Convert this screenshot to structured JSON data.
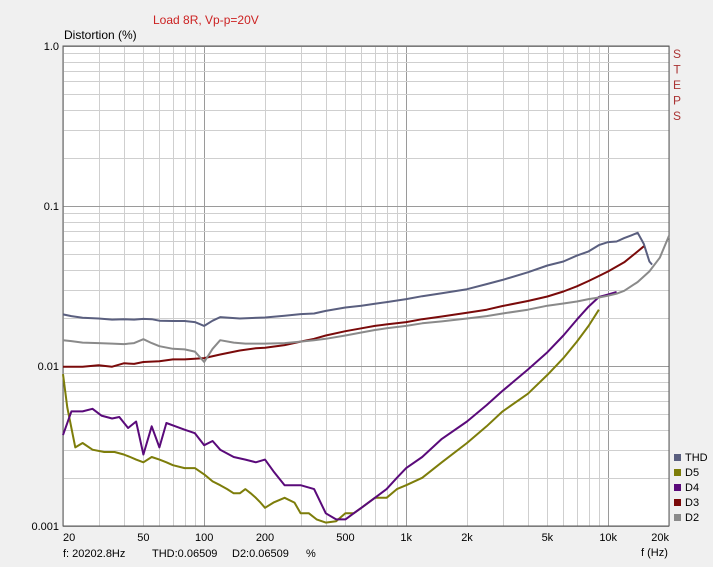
{
  "chart_data": {
    "type": "line",
    "title": "Load 8R, Vp-p=20V",
    "ylabel": "Distortion (%)",
    "xlabel": "f (Hz)",
    "xscale": "log",
    "yscale": "log",
    "xlim": [
      20,
      20000
    ],
    "ylim": [
      0.001,
      1.0
    ],
    "grid": true,
    "legend_position": "bottom-right",
    "side_label": "STEPS",
    "x_ticks": [
      "20",
      "50",
      "100",
      "200",
      "500",
      "1k",
      "2k",
      "5k",
      "10k",
      "20k"
    ],
    "x_tick_values": [
      20,
      50,
      100,
      200,
      500,
      1000,
      2000,
      5000,
      10000,
      20000
    ],
    "y_ticks": [
      "1.0",
      "0.1",
      "0.01",
      "0.001"
    ],
    "y_tick_values": [
      1.0,
      0.1,
      0.01,
      0.001
    ],
    "status": {
      "frequency": "f: 20202.8Hz",
      "thd": "THD:0.06509",
      "d2": "D2:0.06509",
      "unit": "%"
    },
    "series": [
      {
        "name": "THD",
        "color": "#5a5f7f",
        "points": [
          [
            20,
            0.021
          ],
          [
            22,
            0.0205
          ],
          [
            25,
            0.02
          ],
          [
            30,
            0.0198
          ],
          [
            35,
            0.0195
          ],
          [
            40,
            0.0196
          ],
          [
            45,
            0.0195
          ],
          [
            50,
            0.0197
          ],
          [
            55,
            0.0196
          ],
          [
            60,
            0.0192
          ],
          [
            70,
            0.0191
          ],
          [
            80,
            0.0191
          ],
          [
            90,
            0.0188
          ],
          [
            100,
            0.0178
          ],
          [
            110,
            0.0192
          ],
          [
            120,
            0.0202
          ],
          [
            150,
            0.0198
          ],
          [
            200,
            0.0201
          ],
          [
            250,
            0.0206
          ],
          [
            300,
            0.0211
          ],
          [
            350,
            0.0213
          ],
          [
            400,
            0.0221
          ],
          [
            500,
            0.0232
          ],
          [
            600,
            0.0238
          ],
          [
            700,
            0.0245
          ],
          [
            800,
            0.0251
          ],
          [
            1000,
            0.0262
          ],
          [
            1200,
            0.0273
          ],
          [
            1500,
            0.0285
          ],
          [
            2000,
            0.0302
          ],
          [
            2500,
            0.0325
          ],
          [
            3000,
            0.0345
          ],
          [
            4000,
            0.0385
          ],
          [
            5000,
            0.0425
          ],
          [
            6000,
            0.045
          ],
          [
            7000,
            0.049
          ],
          [
            8000,
            0.052
          ],
          [
            9000,
            0.057
          ],
          [
            10000,
            0.0595
          ],
          [
            11000,
            0.06
          ],
          [
            12000,
            0.063
          ],
          [
            13000,
            0.0655
          ],
          [
            14000,
            0.068
          ],
          [
            15000,
            0.058
          ],
          [
            16000,
            0.045
          ],
          [
            16500,
            0.043
          ]
        ]
      },
      {
        "name": "D5",
        "color": "#7d7d0a",
        "points": [
          [
            20,
            0.0089
          ],
          [
            21,
            0.0055
          ],
          [
            23,
            0.0031
          ],
          [
            25,
            0.0033
          ],
          [
            28,
            0.003
          ],
          [
            32,
            0.0029
          ],
          [
            36,
            0.0029
          ],
          [
            40,
            0.0028
          ],
          [
            43,
            0.0027
          ],
          [
            46,
            0.0026
          ],
          [
            50,
            0.0025
          ],
          [
            55,
            0.0027
          ],
          [
            60,
            0.0026
          ],
          [
            65,
            0.0025
          ],
          [
            70,
            0.0024
          ],
          [
            80,
            0.0023
          ],
          [
            90,
            0.0023
          ],
          [
            100,
            0.0021
          ],
          [
            110,
            0.0019
          ],
          [
            120,
            0.0018
          ],
          [
            130,
            0.0017
          ],
          [
            140,
            0.0016
          ],
          [
            150,
            0.0016
          ],
          [
            160,
            0.0017
          ],
          [
            170,
            0.0016
          ],
          [
            180,
            0.0015
          ],
          [
            190,
            0.0014
          ],
          [
            200,
            0.0013
          ],
          [
            220,
            0.0014
          ],
          [
            250,
            0.0015
          ],
          [
            280,
            0.0014
          ],
          [
            300,
            0.0012
          ],
          [
            330,
            0.0012
          ],
          [
            360,
            0.0011
          ],
          [
            400,
            0.00105
          ],
          [
            450,
            0.00107
          ],
          [
            500,
            0.0012
          ],
          [
            550,
            0.0012
          ],
          [
            600,
            0.0013
          ],
          [
            700,
            0.0015
          ],
          [
            800,
            0.0015
          ],
          [
            900,
            0.0017
          ],
          [
            1000,
            0.0018
          ],
          [
            1200,
            0.002
          ],
          [
            1500,
            0.0025
          ],
          [
            2000,
            0.0033
          ],
          [
            2500,
            0.0042
          ],
          [
            3000,
            0.0052
          ],
          [
            4000,
            0.0067
          ],
          [
            5000,
            0.0088
          ],
          [
            6000,
            0.0112
          ],
          [
            7000,
            0.0142
          ],
          [
            8000,
            0.0178
          ],
          [
            9000,
            0.0225
          ]
        ]
      },
      {
        "name": "D4",
        "color": "#5a0a7a",
        "points": [
          [
            20,
            0.0037
          ],
          [
            22,
            0.0052
          ],
          [
            25,
            0.0052
          ],
          [
            28,
            0.0054
          ],
          [
            31,
            0.0049
          ],
          [
            35,
            0.0047
          ],
          [
            38,
            0.0048
          ],
          [
            42,
            0.0041
          ],
          [
            46,
            0.0045
          ],
          [
            50,
            0.0028
          ],
          [
            55,
            0.0042
          ],
          [
            60,
            0.0031
          ],
          [
            65,
            0.0044
          ],
          [
            72,
            0.0042
          ],
          [
            80,
            0.004
          ],
          [
            90,
            0.0038
          ],
          [
            100,
            0.0032
          ],
          [
            110,
            0.0034
          ],
          [
            120,
            0.003
          ],
          [
            140,
            0.0027
          ],
          [
            160,
            0.0026
          ],
          [
            180,
            0.0025
          ],
          [
            200,
            0.0026
          ],
          [
            220,
            0.0022
          ],
          [
            250,
            0.0018
          ],
          [
            300,
            0.0018
          ],
          [
            350,
            0.0017
          ],
          [
            400,
            0.0012
          ],
          [
            450,
            0.0011
          ],
          [
            500,
            0.0011
          ],
          [
            550,
            0.0012
          ],
          [
            600,
            0.0013
          ],
          [
            700,
            0.0015
          ],
          [
            800,
            0.0017
          ],
          [
            900,
            0.002
          ],
          [
            1000,
            0.0023
          ],
          [
            1200,
            0.0027
          ],
          [
            1500,
            0.0035
          ],
          [
            2000,
            0.0045
          ],
          [
            2500,
            0.0057
          ],
          [
            3000,
            0.007
          ],
          [
            4000,
            0.0095
          ],
          [
            5000,
            0.0122
          ],
          [
            6000,
            0.0155
          ],
          [
            7000,
            0.0195
          ],
          [
            8000,
            0.0235
          ],
          [
            9000,
            0.027
          ],
          [
            10000,
            0.028
          ],
          [
            11000,
            0.029
          ]
        ]
      },
      {
        "name": "D3",
        "color": "#7a0a0a",
        "points": [
          [
            20,
            0.0099
          ],
          [
            25,
            0.0099
          ],
          [
            30,
            0.0101
          ],
          [
            35,
            0.0099
          ],
          [
            40,
            0.0104
          ],
          [
            45,
            0.0103
          ],
          [
            50,
            0.0106
          ],
          [
            60,
            0.0107
          ],
          [
            70,
            0.011
          ],
          [
            80,
            0.011
          ],
          [
            90,
            0.0111
          ],
          [
            100,
            0.0112
          ],
          [
            120,
            0.0118
          ],
          [
            150,
            0.0125
          ],
          [
            180,
            0.0129
          ],
          [
            200,
            0.013
          ],
          [
            250,
            0.0135
          ],
          [
            300,
            0.0142
          ],
          [
            350,
            0.0148
          ],
          [
            400,
            0.0155
          ],
          [
            500,
            0.0165
          ],
          [
            600,
            0.0172
          ],
          [
            700,
            0.0178
          ],
          [
            800,
            0.0182
          ],
          [
            1000,
            0.0188
          ],
          [
            1200,
            0.0196
          ],
          [
            1500,
            0.0204
          ],
          [
            2000,
            0.0215
          ],
          [
            2500,
            0.0225
          ],
          [
            3000,
            0.0237
          ],
          [
            4000,
            0.0255
          ],
          [
            5000,
            0.0272
          ],
          [
            6000,
            0.0292
          ],
          [
            7000,
            0.0315
          ],
          [
            8000,
            0.034
          ],
          [
            9000,
            0.0365
          ],
          [
            10000,
            0.039
          ],
          [
            12000,
            0.0445
          ],
          [
            14000,
            0.052
          ],
          [
            15000,
            0.056
          ]
        ]
      },
      {
        "name": "D2",
        "color": "#8a8a8a",
        "points": [
          [
            20,
            0.0145
          ],
          [
            22,
            0.0143
          ],
          [
            25,
            0.014
          ],
          [
            30,
            0.0139
          ],
          [
            35,
            0.0138
          ],
          [
            40,
            0.0137
          ],
          [
            45,
            0.0139
          ],
          [
            50,
            0.0147
          ],
          [
            55,
            0.0139
          ],
          [
            60,
            0.0133
          ],
          [
            70,
            0.0128
          ],
          [
            80,
            0.0127
          ],
          [
            90,
            0.0123
          ],
          [
            100,
            0.0106
          ],
          [
            110,
            0.0128
          ],
          [
            120,
            0.0145
          ],
          [
            140,
            0.014
          ],
          [
            160,
            0.0138
          ],
          [
            200,
            0.0138
          ],
          [
            250,
            0.0139
          ],
          [
            300,
            0.0142
          ],
          [
            350,
            0.0145
          ],
          [
            400,
            0.0148
          ],
          [
            500,
            0.0155
          ],
          [
            600,
            0.0162
          ],
          [
            700,
            0.0168
          ],
          [
            800,
            0.0172
          ],
          [
            1000,
            0.0178
          ],
          [
            1200,
            0.0185
          ],
          [
            1500,
            0.019
          ],
          [
            2000,
            0.0198
          ],
          [
            2500,
            0.0205
          ],
          [
            3000,
            0.0213
          ],
          [
            4000,
            0.0225
          ],
          [
            5000,
            0.0238
          ],
          [
            6000,
            0.0246
          ],
          [
            7000,
            0.0253
          ],
          [
            8000,
            0.0262
          ],
          [
            9000,
            0.0268
          ],
          [
            10000,
            0.0275
          ],
          [
            11000,
            0.0283
          ],
          [
            12000,
            0.0295
          ],
          [
            14000,
            0.0335
          ],
          [
            16000,
            0.039
          ],
          [
            18000,
            0.0475
          ],
          [
            20000,
            0.0651
          ]
        ]
      }
    ]
  }
}
